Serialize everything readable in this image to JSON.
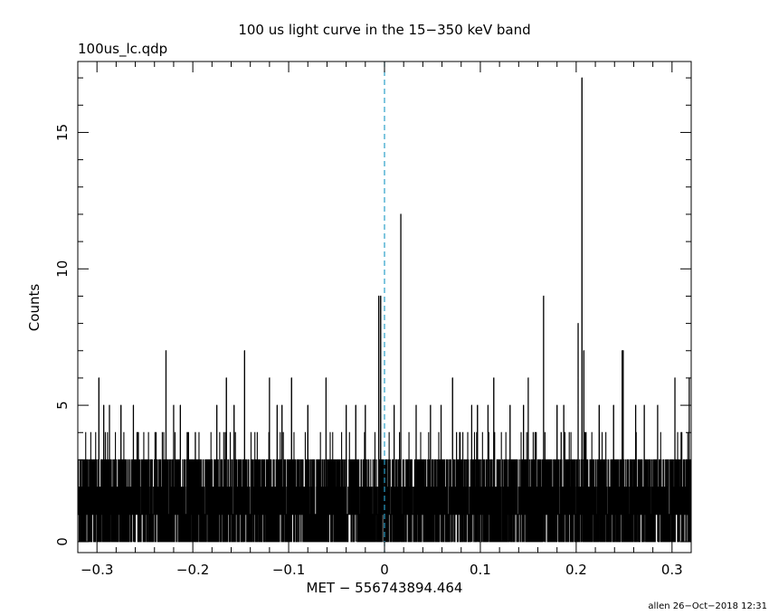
{
  "chart_data": {
    "type": "line",
    "title": "100 us light curve in the 15−350 keV band",
    "subtitle": "100us_lc.qdp",
    "xlabel": "MET − 556743894.464",
    "ylabel": "Counts",
    "footer": "allen 26−Oct−2018 12:31",
    "xlim": [
      -0.32,
      0.32
    ],
    "ylim": [
      -0.4,
      17.6
    ],
    "x_ticks": [
      -0.3,
      -0.2,
      -0.1,
      0,
      0.1,
      0.2,
      0.3
    ],
    "x_tick_labels": [
      "−0.3",
      "−0.2",
      "−0.1",
      "0",
      "0.1",
      "0.2",
      "0.3"
    ],
    "y_ticks": [
      0,
      5,
      10,
      15
    ],
    "y_tick_labels": [
      "0",
      "5",
      "10",
      "15"
    ],
    "bin_width": 0.0001,
    "trigger_x": 0,
    "trigger_line_color": "#2a9fc9",
    "line_color": "#000000",
    "background_level_counts": [
      0,
      3
    ],
    "spikes": [
      {
        "x": -0.298,
        "y": 6
      },
      {
        "x": -0.293,
        "y": 5
      },
      {
        "x": -0.287,
        "y": 5
      },
      {
        "x": -0.275,
        "y": 5
      },
      {
        "x": -0.262,
        "y": 5
      },
      {
        "x": -0.228,
        "y": 7
      },
      {
        "x": -0.22,
        "y": 5
      },
      {
        "x": -0.213,
        "y": 5
      },
      {
        "x": -0.175,
        "y": 5
      },
      {
        "x": -0.165,
        "y": 6
      },
      {
        "x": -0.157,
        "y": 5
      },
      {
        "x": -0.146,
        "y": 7
      },
      {
        "x": -0.12,
        "y": 6
      },
      {
        "x": -0.112,
        "y": 5
      },
      {
        "x": -0.107,
        "y": 5
      },
      {
        "x": -0.097,
        "y": 6
      },
      {
        "x": -0.08,
        "y": 5
      },
      {
        "x": -0.061,
        "y": 6
      },
      {
        "x": -0.04,
        "y": 5
      },
      {
        "x": -0.03,
        "y": 5
      },
      {
        "x": -0.02,
        "y": 5
      },
      {
        "x": -0.006,
        "y": 9
      },
      {
        "x": -0.004,
        "y": 9
      },
      {
        "x": 0.01,
        "y": 5
      },
      {
        "x": 0.017,
        "y": 12
      },
      {
        "x": 0.033,
        "y": 5
      },
      {
        "x": 0.048,
        "y": 5
      },
      {
        "x": 0.059,
        "y": 5
      },
      {
        "x": 0.071,
        "y": 6
      },
      {
        "x": 0.091,
        "y": 5
      },
      {
        "x": 0.097,
        "y": 5
      },
      {
        "x": 0.108,
        "y": 5
      },
      {
        "x": 0.114,
        "y": 6
      },
      {
        "x": 0.131,
        "y": 5
      },
      {
        "x": 0.145,
        "y": 5
      },
      {
        "x": 0.15,
        "y": 6
      },
      {
        "x": 0.166,
        "y": 9
      },
      {
        "x": 0.18,
        "y": 5
      },
      {
        "x": 0.187,
        "y": 5
      },
      {
        "x": 0.202,
        "y": 8
      },
      {
        "x": 0.206,
        "y": 17
      },
      {
        "x": 0.208,
        "y": 7
      },
      {
        "x": 0.224,
        "y": 5
      },
      {
        "x": 0.239,
        "y": 5
      },
      {
        "x": 0.248,
        "y": 7
      },
      {
        "x": 0.249,
        "y": 7
      },
      {
        "x": 0.262,
        "y": 5
      },
      {
        "x": 0.271,
        "y": 5
      },
      {
        "x": 0.285,
        "y": 5
      },
      {
        "x": 0.303,
        "y": 6
      },
      {
        "x": 0.318,
        "y": 6
      }
    ],
    "gaps_at_zero": [
      -0.27,
      -0.255,
      -0.245,
      -0.226,
      -0.208,
      -0.188,
      -0.158,
      -0.143,
      -0.117,
      -0.104,
      -0.084,
      -0.072,
      -0.055,
      -0.039,
      -0.026,
      -0.012,
      0.018,
      0.044,
      0.051,
      0.066,
      0.088,
      0.105,
      0.122,
      0.139,
      0.159,
      0.176,
      0.182,
      0.199,
      0.221,
      0.232,
      0.255,
      0.278,
      0.289,
      0.297,
      0.311
    ]
  }
}
